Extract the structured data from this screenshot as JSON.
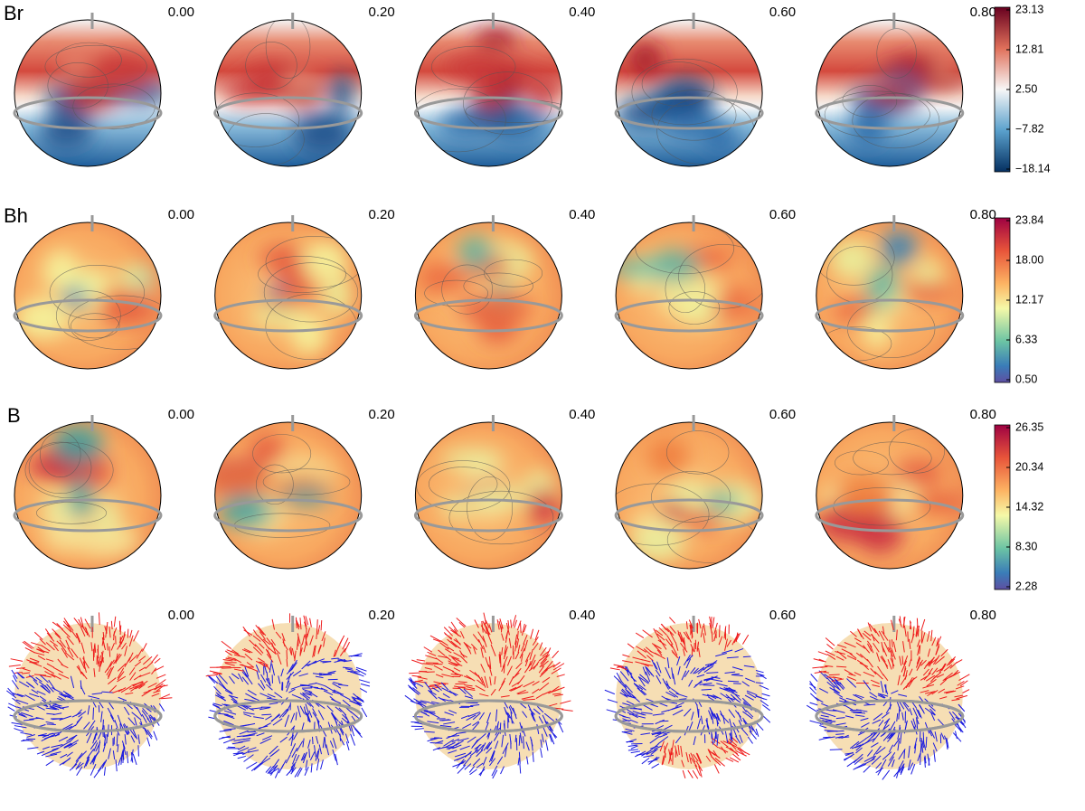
{
  "rows": [
    {
      "label": "Br",
      "phases": [
        "0.00",
        "0.20",
        "0.40",
        "0.60",
        "0.80"
      ],
      "colorbar": {
        "ticks": [
          "23.13",
          "12.81",
          "2.50",
          "−7.82",
          "−18.14"
        ]
      }
    },
    {
      "label": "Bh",
      "phases": [
        "0.00",
        "0.20",
        "0.40",
        "0.60",
        "0.80"
      ],
      "colorbar": {
        "ticks": [
          "23.84",
          "18.00",
          "12.17",
          "6.33",
          "0.50"
        ]
      }
    },
    {
      "label": "B",
      "phases": [
        "0.00",
        "0.20",
        "0.40",
        "0.60",
        "0.80"
      ],
      "colorbar": {
        "ticks": [
          "26.35",
          "20.34",
          "14.32",
          "8.30",
          "2.28"
        ]
      }
    },
    {
      "phases": [
        "0.00",
        "0.20",
        "0.40",
        "0.60",
        "0.80"
      ]
    }
  ]
}
